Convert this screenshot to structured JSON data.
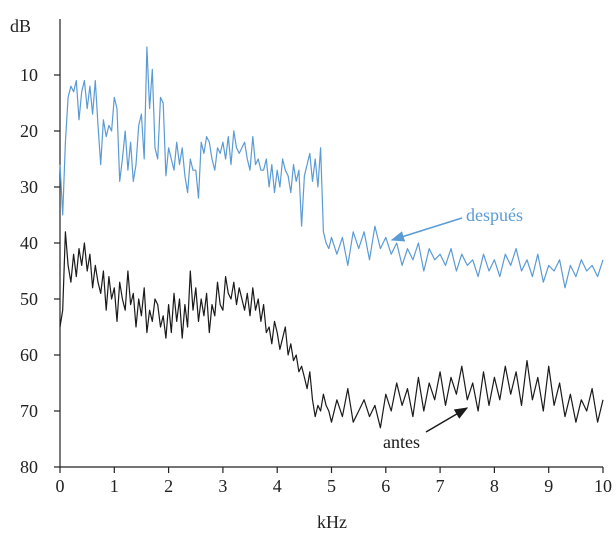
{
  "chart_data": {
    "type": "line",
    "xlabel": "kHz",
    "ylabel": "dB",
    "xlim": [
      0,
      10
    ],
    "ylim": [
      0,
      80
    ],
    "y_inverted": true,
    "grid": false,
    "x_ticks": [
      "0",
      "1",
      "2",
      "3",
      "4",
      "5",
      "6",
      "7",
      "8",
      "9",
      "10"
    ],
    "y_ticks": [
      "10",
      "20",
      "30",
      "40",
      "50",
      "60",
      "70",
      "80"
    ],
    "colors": {
      "despues": "#5b9bd5",
      "antes": "#1a1a1a",
      "axis": "#222222"
    },
    "series": [
      {
        "name": "después",
        "x": [
          0,
          0.05,
          0.1,
          0.15,
          0.2,
          0.25,
          0.3,
          0.35,
          0.4,
          0.45,
          0.5,
          0.55,
          0.6,
          0.65,
          0.7,
          0.75,
          0.8,
          0.85,
          0.9,
          0.95,
          1.0,
          1.05,
          1.1,
          1.15,
          1.2,
          1.25,
          1.3,
          1.35,
          1.4,
          1.45,
          1.5,
          1.55,
          1.6,
          1.65,
          1.7,
          1.75,
          1.8,
          1.85,
          1.9,
          1.95,
          2.0,
          2.05,
          2.1,
          2.15,
          2.2,
          2.25,
          2.3,
          2.35,
          2.4,
          2.45,
          2.5,
          2.55,
          2.6,
          2.65,
          2.7,
          2.75,
          2.8,
          2.85,
          2.9,
          2.95,
          3.0,
          3.05,
          3.1,
          3.15,
          3.2,
          3.25,
          3.3,
          3.35,
          3.4,
          3.45,
          3.5,
          3.55,
          3.6,
          3.65,
          3.7,
          3.75,
          3.8,
          3.85,
          3.9,
          3.95,
          4.0,
          4.05,
          4.1,
          4.15,
          4.2,
          4.25,
          4.3,
          4.35,
          4.4,
          4.45,
          4.5,
          4.55,
          4.6,
          4.65,
          4.7,
          4.75,
          4.8,
          4.85,
          4.9,
          4.95,
          5.0,
          5.1,
          5.2,
          5.3,
          5.4,
          5.5,
          5.6,
          5.7,
          5.8,
          5.9,
          6.0,
          6.1,
          6.2,
          6.3,
          6.4,
          6.5,
          6.6,
          6.7,
          6.8,
          6.9,
          7.0,
          7.1,
          7.2,
          7.3,
          7.4,
          7.5,
          7.6,
          7.7,
          7.8,
          7.9,
          8.0,
          8.1,
          8.2,
          8.3,
          8.4,
          8.5,
          8.6,
          8.7,
          8.8,
          8.9,
          9.0,
          9.1,
          9.2,
          9.3,
          9.4,
          9.5,
          9.6,
          9.7,
          9.8,
          9.9,
          10.0
        ],
        "values": [
          26,
          35,
          22,
          14,
          12,
          13,
          11,
          18,
          13,
          11,
          16,
          12,
          17,
          11,
          19,
          26,
          18,
          21,
          19,
          20,
          14,
          16,
          29,
          25,
          20,
          27,
          22,
          29,
          26,
          19,
          17,
          25,
          5,
          16,
          9,
          23,
          25,
          14,
          15,
          28,
          23,
          25,
          27,
          22,
          26,
          23,
          28,
          31,
          25,
          27,
          27,
          32,
          22,
          24,
          21,
          22,
          25,
          27,
          23,
          24,
          22,
          25,
          21,
          26,
          20,
          23,
          24,
          23,
          22,
          25,
          27,
          21,
          26,
          25,
          27,
          27,
          25,
          30,
          26,
          31,
          27,
          30,
          25,
          27,
          28,
          31,
          26,
          29,
          27,
          37,
          28,
          26,
          24,
          29,
          25,
          30,
          23,
          38,
          40,
          41,
          39,
          42,
          39,
          44,
          38,
          41,
          38,
          43,
          37,
          41,
          39,
          42,
          40,
          44,
          41,
          43,
          40,
          45,
          41,
          43,
          42,
          44,
          41,
          45,
          42,
          44,
          43,
          46,
          42,
          45,
          43,
          46,
          42,
          44,
          41,
          45,
          43,
          46,
          42,
          47,
          44,
          45,
          43,
          48,
          44,
          46,
          43,
          45,
          44,
          46,
          43
        ]
      },
      {
        "name": "antes",
        "x": [
          0,
          0.05,
          0.1,
          0.15,
          0.2,
          0.25,
          0.3,
          0.35,
          0.4,
          0.45,
          0.5,
          0.55,
          0.6,
          0.65,
          0.7,
          0.75,
          0.8,
          0.85,
          0.9,
          0.95,
          1.0,
          1.05,
          1.1,
          1.15,
          1.2,
          1.25,
          1.3,
          1.35,
          1.4,
          1.45,
          1.5,
          1.55,
          1.6,
          1.65,
          1.7,
          1.75,
          1.8,
          1.85,
          1.9,
          1.95,
          2.0,
          2.05,
          2.1,
          2.15,
          2.2,
          2.25,
          2.3,
          2.35,
          2.4,
          2.45,
          2.5,
          2.55,
          2.6,
          2.65,
          2.7,
          2.75,
          2.8,
          2.85,
          2.9,
          2.95,
          3.0,
          3.05,
          3.1,
          3.15,
          3.2,
          3.25,
          3.3,
          3.35,
          3.4,
          3.45,
          3.5,
          3.55,
          3.6,
          3.65,
          3.7,
          3.75,
          3.8,
          3.85,
          3.9,
          3.95,
          4.0,
          4.05,
          4.1,
          4.15,
          4.2,
          4.25,
          4.3,
          4.35,
          4.4,
          4.45,
          4.5,
          4.55,
          4.6,
          4.65,
          4.7,
          4.75,
          4.8,
          4.85,
          4.9,
          4.95,
          5.0,
          5.1,
          5.2,
          5.3,
          5.4,
          5.5,
          5.6,
          5.7,
          5.8,
          5.9,
          6.0,
          6.1,
          6.2,
          6.3,
          6.4,
          6.5,
          6.6,
          6.7,
          6.8,
          6.9,
          7.0,
          7.1,
          7.2,
          7.3,
          7.4,
          7.5,
          7.6,
          7.7,
          7.8,
          7.9,
          8.0,
          8.1,
          8.2,
          8.3,
          8.4,
          8.5,
          8.6,
          8.7,
          8.8,
          8.9,
          9.0,
          9.1,
          9.2,
          9.3,
          9.4,
          9.5,
          9.6,
          9.7,
          9.8,
          9.9,
          10.0
        ],
        "values": [
          55,
          52,
          38,
          44,
          47,
          42,
          46,
          41,
          44,
          40,
          45,
          42,
          48,
          44,
          47,
          49,
          45,
          52,
          46,
          50,
          48,
          54,
          47,
          50,
          52,
          45,
          51,
          49,
          55,
          50,
          53,
          48,
          56,
          52,
          54,
          50,
          51,
          55,
          53,
          57,
          51,
          56,
          49,
          54,
          50,
          57,
          51,
          55,
          45,
          52,
          48,
          54,
          50,
          53,
          49,
          56,
          51,
          53,
          47,
          51,
          52,
          46,
          49,
          50,
          47,
          51,
          48,
          50,
          52,
          49,
          53,
          48,
          52,
          50,
          54,
          51,
          56,
          55,
          58,
          54,
          56,
          59,
          57,
          55,
          60,
          58,
          61,
          60,
          63,
          62,
          64,
          66,
          63,
          68,
          71,
          69,
          70,
          67,
          69,
          70,
          72,
          68,
          71,
          66,
          72,
          70,
          68,
          71,
          69,
          73,
          67,
          70,
          65,
          69,
          66,
          71,
          64,
          70,
          65,
          68,
          63,
          69,
          64,
          67,
          62,
          68,
          65,
          70,
          63,
          69,
          64,
          68,
          62,
          67,
          63,
          69,
          61,
          68,
          64,
          70,
          62,
          69,
          65,
          71,
          67,
          72,
          68,
          70,
          66,
          72,
          68
        ]
      }
    ],
    "annotations": [
      {
        "text": "después",
        "series": "después",
        "points_to_x": 6.1,
        "points_to_y": 41
      },
      {
        "text": "antes",
        "series": "antes",
        "points_to_x": 7.6,
        "points_to_y": 69
      }
    ]
  }
}
